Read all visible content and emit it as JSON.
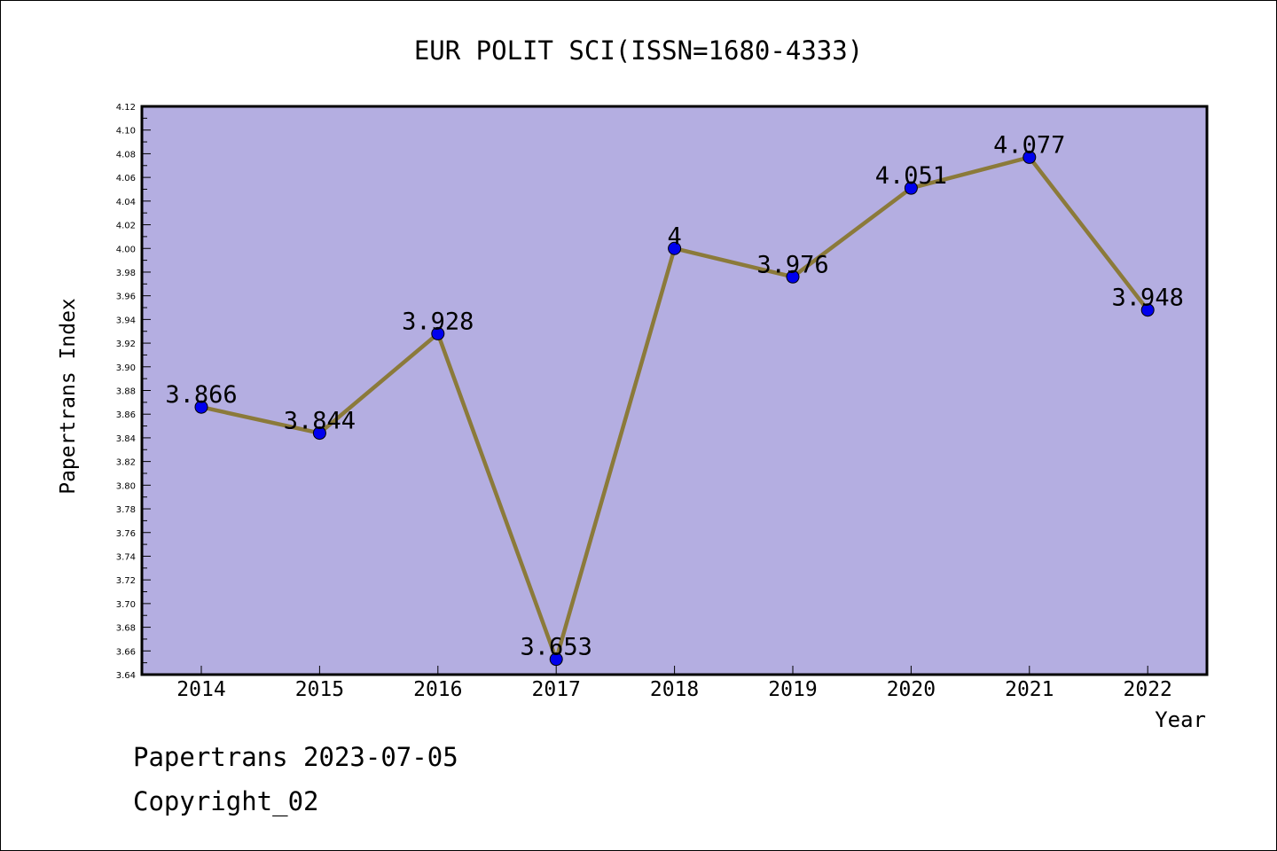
{
  "chart_data": {
    "type": "line",
    "title": "EUR POLIT SCI(ISSN=1680-4333)",
    "xlabel": "Year",
    "ylabel": "Papertrans Index",
    "categories": [
      "2014",
      "2015",
      "2016",
      "2017",
      "2018",
      "2019",
      "2020",
      "2021",
      "2022"
    ],
    "values": [
      3.866,
      3.844,
      3.928,
      3.653,
      4,
      3.976,
      4.051,
      4.077,
      3.948
    ],
    "data_labels": [
      "3.866",
      "3.844",
      "3.928",
      "3.653",
      "4",
      "3.976",
      "4.051",
      "4.077",
      "3.948"
    ],
    "ylim": [
      3.64,
      4.12
    ],
    "y_ticks": [
      "3.64",
      "3.66",
      "3.68",
      "3.70",
      "3.72",
      "3.74",
      "3.76",
      "3.78",
      "3.80",
      "3.82",
      "3.84",
      "3.86",
      "3.88",
      "3.90",
      "3.92",
      "3.94",
      "3.96",
      "3.98",
      "4.00",
      "4.02",
      "4.04",
      "4.06",
      "4.08",
      "4.10",
      "4.12"
    ],
    "grid": false,
    "legend": "none",
    "colors": {
      "plot_background": "#b4aee1",
      "line": "#8b7a3a",
      "marker": "#0000ee"
    }
  },
  "footer": {
    "line1": "Papertrans 2023-07-05",
    "line2": "Copyright_02"
  }
}
